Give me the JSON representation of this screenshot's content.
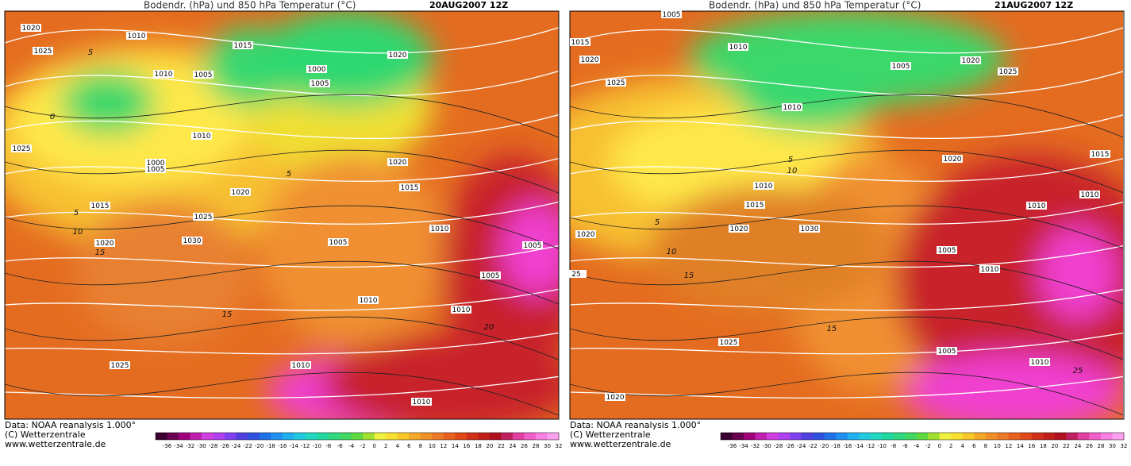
{
  "panels": [
    {
      "title": "Bodendr. (hPa) und 850 hPa Temperatur (°C)",
      "date": "20AUG2007 12Z",
      "footer": [
        "Data: NOAA reanalysis 1.000°",
        "(C) Wetterzentrale",
        "www.wetterzentrale.de"
      ],
      "isobars": [
        "1020",
        "1010",
        "1015",
        "1025",
        "1010",
        "1005",
        "1000",
        "1005",
        "1020",
        "1010",
        "1025",
        "1000",
        "1005",
        "1020",
        "1015",
        "1020",
        "1015",
        "1025",
        "1010",
        "1020",
        "1030",
        "1005",
        "1005",
        "1005",
        "1010",
        "1010",
        "1025",
        "1010",
        "1010"
      ],
      "isotherms": [
        "5",
        "0",
        "5",
        "10",
        "15",
        "15",
        "5",
        "20"
      ]
    },
    {
      "title": "Bodendr. (hPa) und 850 hPa Temperatur (°C)",
      "date": "21AUG2007 12Z",
      "footer": [
        "Data: NOAA reanalysis 1.000°",
        "(C) Wetterzentrale",
        "www.wetterzentrale.de"
      ],
      "isobars": [
        "1005",
        "1010",
        "1015",
        "1020",
        "1005",
        "1020",
        "1025",
        "1025",
        "1010",
        "1020",
        "1015",
        "1010",
        "1015",
        "1010",
        "1010",
        "1020",
        "1020",
        "1030",
        "1005",
        "1010",
        "25",
        "1025",
        "1005",
        "1010",
        "1020"
      ],
      "isotherms": [
        "5",
        "10",
        "15",
        "10",
        "5",
        "15",
        "25"
      ]
    }
  ],
  "colorbar": [
    "-36",
    "-34",
    "-32",
    "-30",
    "-28",
    "-26",
    "-24",
    "-22",
    "-20",
    "-18",
    "-16",
    "-14",
    "-12",
    "-10",
    "-8",
    "-6",
    "-4",
    "-2",
    "0",
    "2",
    "4",
    "6",
    "8",
    "10",
    "12",
    "14",
    "16",
    "18",
    "20",
    "22",
    "24",
    "26",
    "28",
    "30",
    "32"
  ]
}
